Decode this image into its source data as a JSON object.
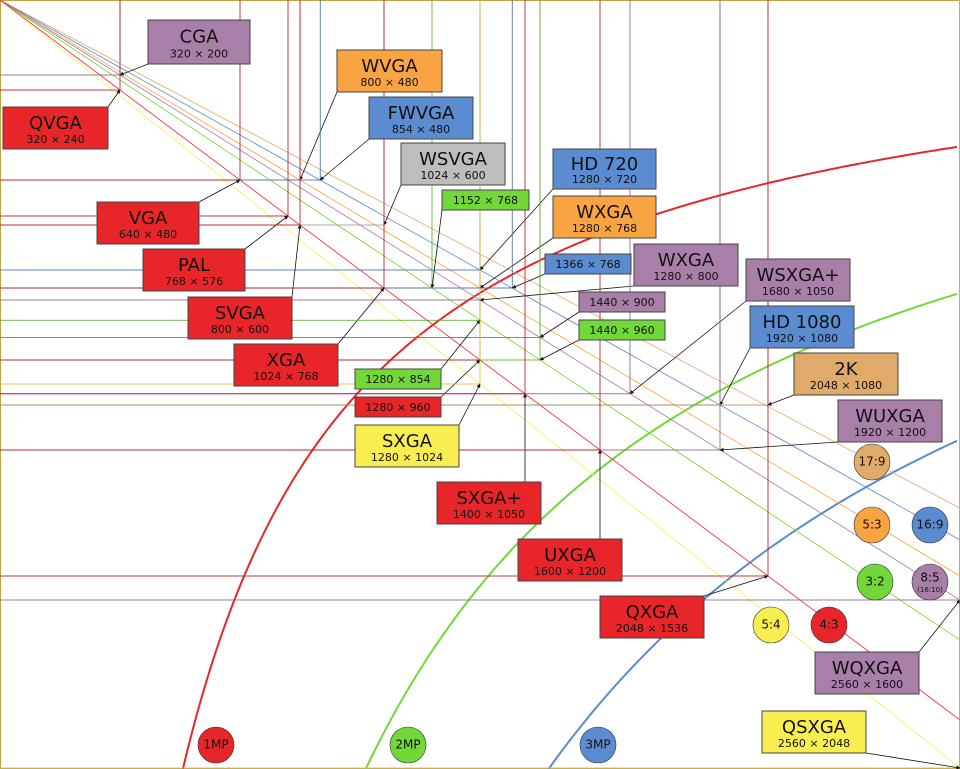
{
  "nodes": [
    {
      "name": "CGA",
      "resolution": "320 × 200",
      "color": "#a77fa8"
    },
    {
      "name": "QVGA",
      "resolution": "320 × 240",
      "color": "#e8262a"
    },
    {
      "name": "WVGA",
      "resolution": "800 × 480",
      "color": "#f8a442"
    },
    {
      "name": "FWVGA",
      "resolution": "854 × 480",
      "color": "#5b8bd0"
    },
    {
      "name": "WSVGA",
      "resolution": "1024 × 600",
      "color": "#bdbdbb"
    },
    {
      "resolution": "1152 × 768",
      "color": "#72d83a"
    },
    {
      "name": "HD 720",
      "resolution": "1280 × 720",
      "color": "#5b8bd0"
    },
    {
      "name": "WXGA",
      "resolution": "1280 × 768",
      "color": "#f8a442"
    },
    {
      "name": "VGA",
      "resolution": "640 × 480",
      "color": "#e8262a"
    },
    {
      "name": "PAL",
      "resolution": "768 × 576",
      "color": "#e8262a"
    },
    {
      "name": "WXGA",
      "resolution": "1280 × 800",
      "color": "#a77fa8"
    },
    {
      "resolution": "1366 × 768",
      "color": "#5b8bd0"
    },
    {
      "name": "WSXGA+",
      "resolution": "1680 × 1050",
      "color": "#a77fa8"
    },
    {
      "resolution": "1440 × 900",
      "color": "#a77fa8"
    },
    {
      "name": "SVGA",
      "resolution": "800 × 600",
      "color": "#e8262a"
    },
    {
      "name": "HD 1080",
      "resolution": "1920 × 1080",
      "color": "#5b8bd0"
    },
    {
      "resolution": "1440 × 960",
      "color": "#72d83a"
    },
    {
      "name": "XGA",
      "resolution": "1024 × 768",
      "color": "#e8262a"
    },
    {
      "name": "2K",
      "resolution": "2048 × 1080",
      "color": "#e0aa6a"
    },
    {
      "resolution": "1280 × 854",
      "color": "#72d83a"
    },
    {
      "resolution": "1280 × 960",
      "color": "#e8262a"
    },
    {
      "name": "WUXGA",
      "resolution": "1920 × 1200",
      "color": "#a77fa8"
    },
    {
      "name": "SXGA",
      "resolution": "1280 × 1024",
      "color": "#f8ee50"
    },
    {
      "name": "SXGA+",
      "resolution": "1400 × 1050",
      "color": "#e8262a"
    },
    {
      "name": "UXGA",
      "resolution": "1600 × 1200",
      "color": "#e8262a"
    },
    {
      "name": "QXGA",
      "resolution": "2048 × 1536",
      "color": "#e8262a"
    },
    {
      "name": "WQXGA",
      "resolution": "2560 × 1600",
      "color": "#a77fa8"
    },
    {
      "name": "QSXGA",
      "resolution": "2560 × 2048",
      "color": "#f8ee50"
    }
  ],
  "aspects": [
    {
      "label": "17:9",
      "color": "#e0aa6a"
    },
    {
      "label": "5:3",
      "color": "#f8a442"
    },
    {
      "label": "16:9",
      "color": "#5b8bd0"
    },
    {
      "label": "3:2",
      "color": "#72d83a"
    },
    {
      "label": "8:5",
      "sublabel": "(16:10)",
      "color": "#a77fa8"
    },
    {
      "label": "5:4",
      "color": "#f8ee50"
    },
    {
      "label": "4:3",
      "color": "#e8262a"
    }
  ],
  "megapixels": [
    {
      "label": "1MP",
      "color": "#e8262a"
    },
    {
      "label": "2MP",
      "color": "#72d83a"
    },
    {
      "label": "3MP",
      "color": "#5b8bd0"
    }
  ]
}
